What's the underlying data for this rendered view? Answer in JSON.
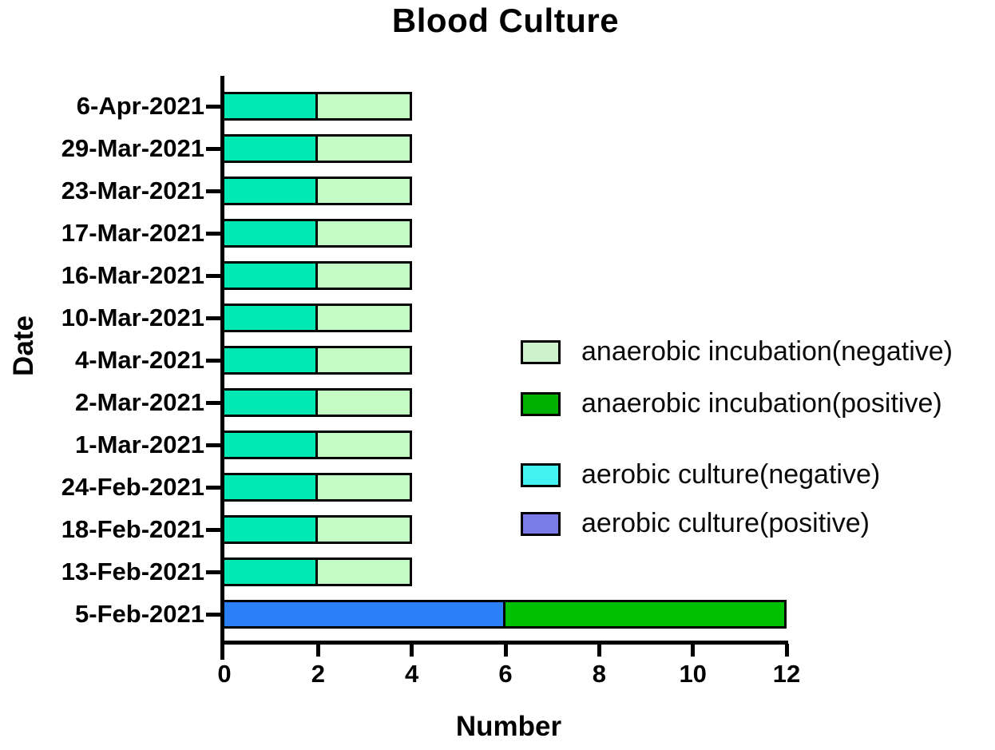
{
  "figure": {
    "background": "#ffffff",
    "text_color": "#000000",
    "axis_color": "#000000"
  },
  "chart_data": {
    "type": "bar",
    "orientation": "horizontal",
    "stacked": true,
    "title": "Blood Culture",
    "xlabel": "Number",
    "ylabel": "Date",
    "xlim": [
      0,
      12
    ],
    "xticks": [
      0,
      2,
      4,
      6,
      8,
      10,
      12
    ],
    "grid": false,
    "categories": [
      "6-Apr-2021",
      "29-Mar-2021",
      "23-Mar-2021",
      "17-Mar-2021",
      "16-Mar-2021",
      "10-Mar-2021",
      "4-Mar-2021",
      "2-Mar-2021",
      "1-Mar-2021",
      "24-Feb-2021",
      "18-Feb-2021",
      "13-Feb-2021",
      "5-Feb-2021"
    ],
    "series": [
      {
        "name": "aerobic culture(negative)",
        "color": "#00e9b5",
        "values": [
          2,
          2,
          2,
          2,
          2,
          2,
          2,
          2,
          2,
          2,
          2,
          2,
          0
        ]
      },
      {
        "name": "anaerobic incubation(negative)",
        "color": "#c4fbc4",
        "values": [
          2,
          2,
          2,
          2,
          2,
          2,
          2,
          2,
          2,
          2,
          2,
          2,
          0
        ]
      },
      {
        "name": "aerobic culture(positive)",
        "color": "#2b80f8",
        "values": [
          0,
          0,
          0,
          0,
          0,
          0,
          0,
          0,
          0,
          0,
          0,
          0,
          6
        ]
      },
      {
        "name": "anaerobic incubation(positive)",
        "color": "#01c001",
        "values": [
          0,
          0,
          0,
          0,
          0,
          0,
          0,
          0,
          0,
          0,
          0,
          0,
          6
        ]
      }
    ],
    "legend": {
      "position": "center-right",
      "entries": [
        {
          "label": "anaerobic incubation(negative)",
          "swatch_color": "#cdf2cc"
        },
        {
          "label": "anaerobic incubation(positive)",
          "swatch_color": "#00b000"
        },
        {
          "label": "aerobic culture(negative)",
          "swatch_color": "#45f2f2"
        },
        {
          "label": "aerobic culture(positive)",
          "swatch_color": "#7b7be8"
        }
      ]
    }
  }
}
